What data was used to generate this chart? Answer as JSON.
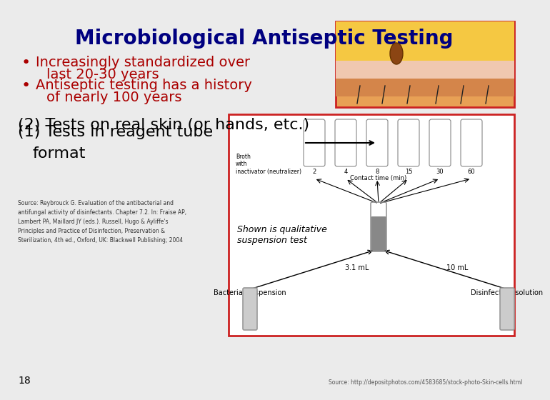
{
  "title": "Microbiological Antiseptic Testing",
  "title_color": "#000080",
  "title_fontsize": 20,
  "title_fontweight": "bold",
  "bg_color": "#ebebeb",
  "section1_line1": "(1) Tests in reagent tube",
  "section1_line2": "    format",
  "section1_color": "#000000",
  "section1_fontsize": 16,
  "label_bacterial": "Bacterial suspension",
  "label_disinfectant": "Disinfectant solution",
  "label_shown1": "Shown is qualitative",
  "label_shown2": "suspension test",
  "vol_left": "3.1 mL",
  "vol_right": "10 mL",
  "contact_time_label": "Contact time (min)",
  "time_labels": [
    "2",
    "4",
    "8",
    "15",
    "30",
    "60"
  ],
  "broth_label": "Broth\nwith\ninactivator (neutralizer)",
  "source_text1": "Source: Reybrouck G. Evaluation of the antibacterial and",
  "source_text2": "antifungal activity of disinfectants. Chapter 7.2. In: Fraise AP,",
  "source_text3": "Lambert PA, Maillard JY (eds.). Russell, Hugo & Ayliffe's",
  "source_text4": "Principles and Practice of Disinfection, Preservation &",
  "source_text5": "Sterilization, 4th ed., Oxford, UK: Blackwell Publishing; 2004",
  "section2_text": "(2) Tests on real skin (or hands, etc.)",
  "section2_color": "#000000",
  "section2_fontsize": 16,
  "bullet1_line1": "Antiseptic testing has a history",
  "bullet1_line2": "of nearly 100 years",
  "bullet2_line1": "Increasingly standardized over",
  "bullet2_line2": "last 20-30 years",
  "bullet_color": "#aa0000",
  "bullet_fontsize": 14,
  "page_num": "18",
  "source_bottom": "Source: http://depositphotos.com/4583685/stock-photo-Skin-cells.html",
  "box_edge_color": "#cc2222"
}
